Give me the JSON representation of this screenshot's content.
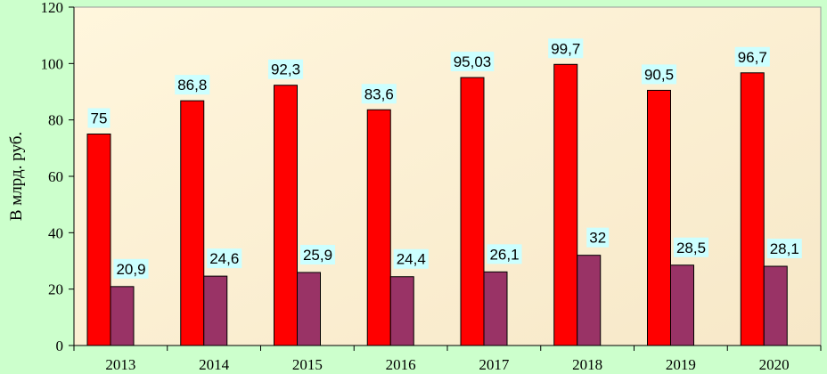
{
  "chart_data": {
    "type": "bar",
    "categories": [
      "2013",
      "2014",
      "2015",
      "2016",
      "2017",
      "2018",
      "2019",
      "2020"
    ],
    "series": [
      {
        "values": [
          75,
          86.8,
          92.3,
          83.6,
          95.03,
          99.7,
          90.5,
          96.7
        ],
        "labels": [
          "75",
          "86,8",
          "92,3",
          "83,6",
          "95,03",
          "99,7",
          "90,5",
          "96,7"
        ],
        "color": "#ff0000"
      },
      {
        "values": [
          20.9,
          24.6,
          25.9,
          24.4,
          26.1,
          32,
          28.5,
          28.1
        ],
        "labels": [
          "20,9",
          "24,6",
          "25,9",
          "24,4",
          "26,1",
          "32",
          "28,5",
          "28,1"
        ],
        "color": "#993366"
      }
    ],
    "yticks": [
      "0",
      "20",
      "40",
      "60",
      "80",
      "100",
      "120"
    ],
    "ylabel": "В млрд. руб.",
    "xlabel": "",
    "ylim": [
      0,
      120
    ],
    "grid": false,
    "legend": "none",
    "plot_background": "#fff2cc",
    "label_background": "#ccffff"
  }
}
